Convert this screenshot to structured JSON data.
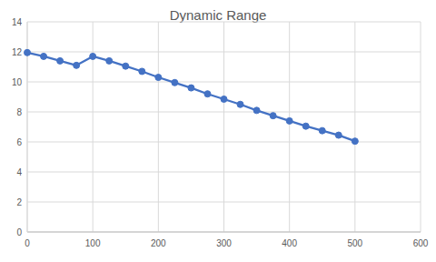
{
  "chart_data": {
    "type": "line",
    "title": "Dynamic Range",
    "x": [
      0,
      25,
      50,
      75,
      100,
      125,
      150,
      175,
      200,
      225,
      250,
      275,
      300,
      325,
      350,
      375,
      400,
      425,
      450,
      475,
      500
    ],
    "values": [
      11.95,
      11.7,
      11.4,
      11.1,
      11.7,
      11.4,
      11.05,
      10.7,
      10.3,
      9.95,
      9.6,
      9.2,
      8.85,
      8.5,
      8.1,
      7.75,
      7.4,
      7.05,
      6.75,
      6.45,
      6.05
    ],
    "color": "#4472c4",
    "marker": "circle",
    "line_style": "solid",
    "xlim": [
      0,
      600
    ],
    "xticks": [
      0,
      100,
      200,
      300,
      400,
      500,
      600
    ],
    "ylim": [
      0,
      14
    ],
    "yticks": [
      0,
      2,
      4,
      6,
      8,
      10,
      12,
      14
    ],
    "grid": true
  }
}
